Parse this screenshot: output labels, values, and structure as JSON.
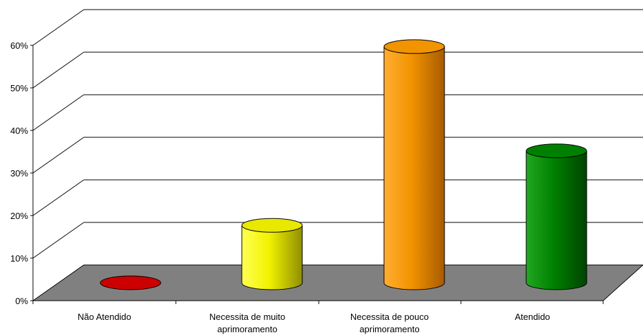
{
  "chart_data": {
    "type": "bar",
    "style": "3d-cylinder",
    "categories": [
      [
        "Não Atendido"
      ],
      [
        "Necessita de muito",
        "aprimoramento"
      ],
      [
        "Necessita de pouco",
        "aprimoramento"
      ],
      [
        "Atendido"
      ]
    ],
    "values": [
      0,
      13.5,
      55.5,
      31
    ],
    "colors": [
      "#cc0000",
      "#e8e800",
      "#f29400",
      "#008000"
    ],
    "ylim": [
      0,
      60
    ],
    "yticks": [
      "0%",
      "10%",
      "20%",
      "30%",
      "40%",
      "50%",
      "60%"
    ],
    "grid": true,
    "floor_color": "#808080",
    "legend": "none"
  }
}
